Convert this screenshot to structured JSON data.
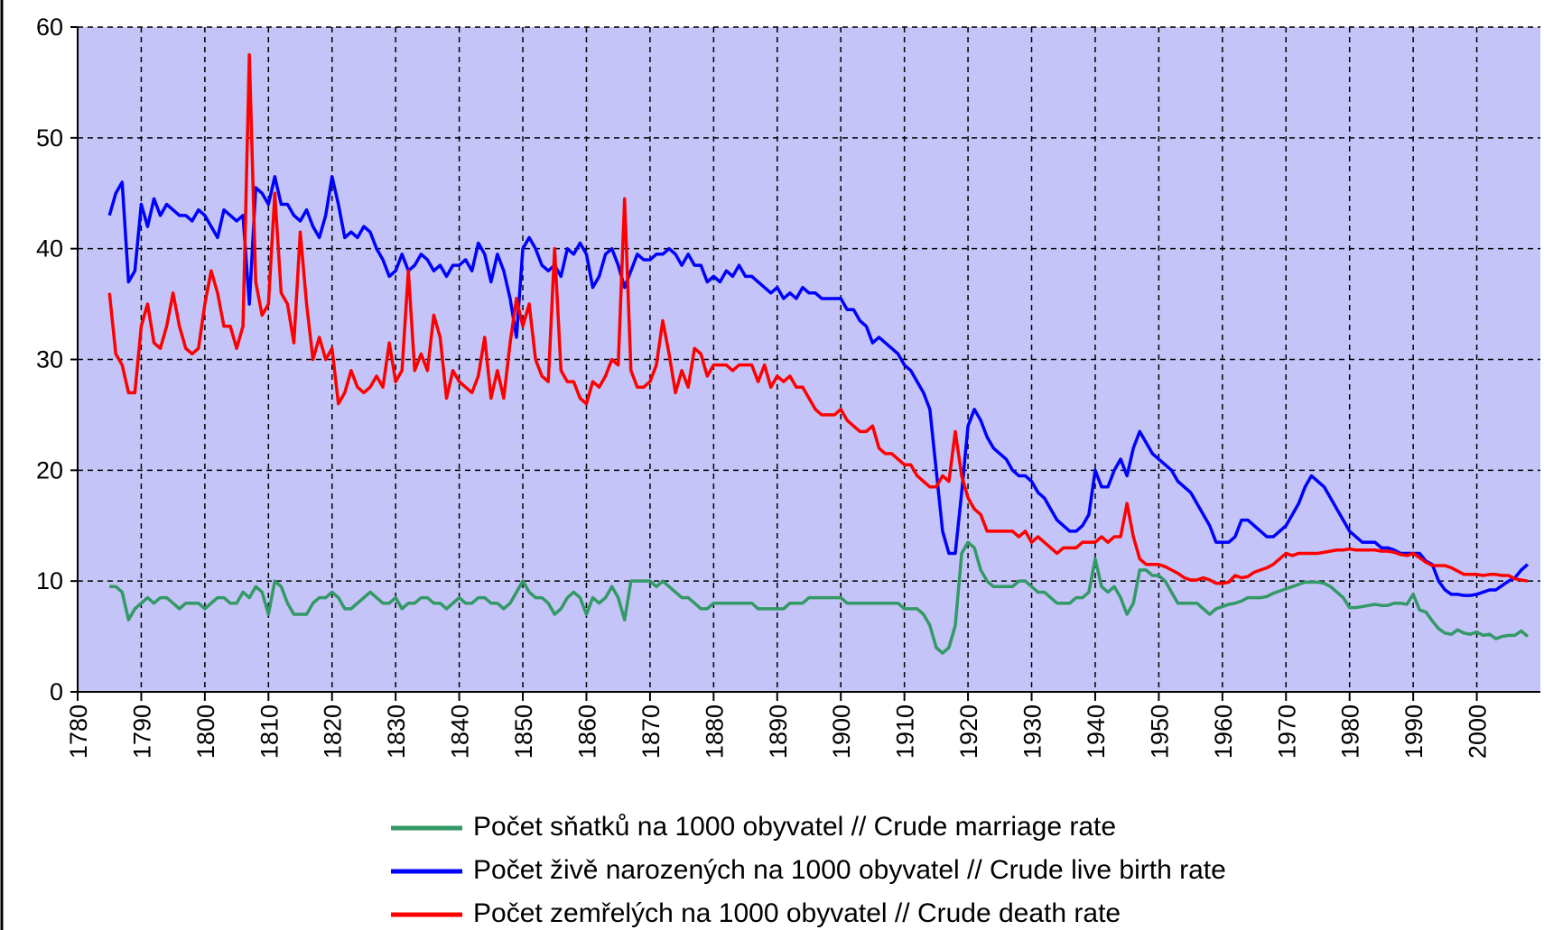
{
  "chart_data": {
    "type": "line",
    "x": [
      1785,
      1786,
      1787,
      1788,
      1789,
      1790,
      1791,
      1792,
      1793,
      1794,
      1795,
      1796,
      1797,
      1798,
      1799,
      1800,
      1801,
      1802,
      1803,
      1804,
      1805,
      1806,
      1807,
      1808,
      1809,
      1810,
      1811,
      1812,
      1813,
      1814,
      1815,
      1816,
      1817,
      1818,
      1819,
      1820,
      1821,
      1822,
      1823,
      1824,
      1825,
      1826,
      1827,
      1828,
      1829,
      1830,
      1831,
      1832,
      1833,
      1834,
      1835,
      1836,
      1837,
      1838,
      1839,
      1840,
      1841,
      1842,
      1843,
      1844,
      1845,
      1846,
      1847,
      1848,
      1849,
      1850,
      1851,
      1852,
      1853,
      1854,
      1855,
      1856,
      1857,
      1858,
      1859,
      1860,
      1861,
      1862,
      1863,
      1864,
      1865,
      1866,
      1867,
      1868,
      1869,
      1870,
      1871,
      1872,
      1873,
      1874,
      1875,
      1876,
      1877,
      1878,
      1879,
      1880,
      1881,
      1882,
      1883,
      1884,
      1885,
      1886,
      1887,
      1888,
      1889,
      1890,
      1891,
      1892,
      1893,
      1894,
      1895,
      1896,
      1897,
      1898,
      1899,
      1900,
      1901,
      1902,
      1903,
      1904,
      1905,
      1906,
      1907,
      1908,
      1909,
      1910,
      1911,
      1912,
      1913,
      1914,
      1915,
      1916,
      1917,
      1918,
      1919,
      1920,
      1921,
      1922,
      1923,
      1924,
      1925,
      1926,
      1927,
      1928,
      1929,
      1930,
      1931,
      1932,
      1933,
      1934,
      1935,
      1936,
      1937,
      1938,
      1939,
      1940,
      1941,
      1942,
      1943,
      1944,
      1945,
      1946,
      1947,
      1948,
      1949,
      1950,
      1951,
      1952,
      1953,
      1954,
      1955,
      1956,
      1957,
      1958,
      1959,
      1960,
      1961,
      1962,
      1963,
      1964,
      1965,
      1966,
      1967,
      1968,
      1969,
      1970,
      1971,
      1972,
      1973,
      1974,
      1975,
      1976,
      1977,
      1978,
      1979,
      1980,
      1981,
      1982,
      1983,
      1984,
      1985,
      1986,
      1987,
      1988,
      1989,
      1990,
      1991,
      1992,
      1993,
      1994,
      1995,
      1996,
      1997,
      1998,
      1999,
      2000,
      2001,
      2002,
      2003,
      2004,
      2005,
      2006,
      2007,
      2008
    ],
    "series": [
      {
        "name": "Počet sňatků na 1000 obyvatel // Crude marriage rate",
        "color": "#339966",
        "values": [
          9.5,
          9.5,
          9,
          6.5,
          7.5,
          8,
          8.5,
          8,
          8.5,
          8.5,
          8,
          7.5,
          8,
          8,
          8,
          7.5,
          8,
          8.5,
          8.5,
          8,
          8,
          9,
          8.5,
          9.5,
          9,
          7,
          10,
          9.5,
          8,
          7,
          7,
          7,
          8,
          8.5,
          8.5,
          9,
          8.5,
          7.5,
          7.5,
          8,
          8.5,
          9,
          8.5,
          8,
          8,
          8.5,
          7.5,
          8,
          8,
          8.5,
          8.5,
          8,
          8,
          7.5,
          8,
          8.5,
          8,
          8,
          8.5,
          8.5,
          8,
          8,
          7.5,
          8,
          9,
          10,
          9,
          8.5,
          8.5,
          8,
          7,
          7.5,
          8.5,
          9,
          8.5,
          7,
          8.5,
          8,
          8.5,
          9.5,
          8.5,
          6.5,
          10,
          10,
          10,
          10,
          9.5,
          10,
          9.5,
          9,
          8.5,
          8.5,
          8,
          7.5,
          7.5,
          8,
          8,
          8,
          8,
          8,
          8,
          8,
          7.5,
          7.5,
          7.5,
          7.5,
          7.5,
          8,
          8,
          8,
          8.5,
          8.5,
          8.5,
          8.5,
          8.5,
          8.5,
          8,
          8,
          8,
          8,
          8,
          8,
          8,
          8,
          8,
          7.5,
          7.5,
          7.5,
          7,
          6,
          4,
          3.5,
          4,
          6,
          12.5,
          13.5,
          13,
          11,
          10,
          9.5,
          9.5,
          9.5,
          9.5,
          10,
          10,
          9.5,
          9,
          9,
          8.5,
          8,
          8,
          8,
          8.5,
          8.5,
          9,
          12,
          9.5,
          9,
          9.5,
          8.5,
          7,
          8,
          11,
          11,
          10.5,
          10.5,
          10,
          9,
          8,
          8,
          8,
          8,
          7.5,
          7,
          7.5,
          7.7,
          7.9,
          8,
          8.2,
          8.5,
          8.5,
          8.5,
          8.6,
          8.9,
          9.1,
          9.3,
          9.5,
          9.7,
          9.9,
          9.9,
          9.9,
          9.8,
          9.5,
          9,
          8.5,
          7.6,
          7.6,
          7.7,
          7.8,
          7.9,
          7.8,
          7.8,
          8,
          8,
          7.9,
          8.8,
          7.4,
          7.2,
          6.4,
          5.7,
          5.3,
          5.2,
          5.6,
          5.3,
          5.2,
          5.4,
          5.1,
          5.2,
          4.8,
          5,
          5.1,
          5.1,
          5.5,
          5
        ]
      },
      {
        "name": "Počet živě narozených na 1000 obyvatel // Crude live birth rate",
        "color": "#0000ff",
        "values": [
          43,
          45,
          46,
          37,
          38,
          44,
          42,
          44.5,
          43,
          44,
          43.5,
          43,
          43,
          42.5,
          43.5,
          43,
          42,
          41,
          43.5,
          43,
          42.5,
          43,
          35,
          45.5,
          45,
          44,
          46.5,
          44,
          44,
          43,
          42.5,
          43.5,
          42,
          41,
          43,
          46.5,
          44,
          41,
          41.5,
          41,
          42,
          41.5,
          40,
          39,
          37.5,
          38,
          39.5,
          38,
          38.5,
          39.5,
          39,
          38,
          38.5,
          37.5,
          38.5,
          38.5,
          39,
          38,
          40.5,
          39.5,
          37,
          39.5,
          38,
          35.5,
          32,
          40,
          41,
          40,
          38.5,
          38,
          38.5,
          37.5,
          40,
          39.5,
          40.5,
          39.5,
          36.5,
          37.5,
          39.5,
          40,
          38.5,
          36.5,
          38,
          39.5,
          39,
          39,
          39.5,
          39.5,
          40,
          39.5,
          38.5,
          39.5,
          38.5,
          38.5,
          37,
          37.5,
          37,
          38,
          37.5,
          38.5,
          37.5,
          37.5,
          37,
          36.5,
          36,
          36.5,
          35.5,
          36,
          35.5,
          36.5,
          36,
          36,
          35.5,
          35.5,
          35.5,
          35.5,
          34.5,
          34.5,
          33.5,
          33,
          31.5,
          32,
          31.5,
          31,
          30.5,
          29.5,
          29,
          28,
          27,
          25.5,
          20,
          14.5,
          12.5,
          12.5,
          18,
          24,
          25.5,
          24.5,
          23,
          22,
          21.5,
          21,
          20,
          19.5,
          19.5,
          19,
          18,
          17.5,
          16.5,
          15.5,
          15,
          14.5,
          14.5,
          15,
          16,
          20,
          18.5,
          18.5,
          20,
          21,
          19.5,
          22,
          23.5,
          22.5,
          21.5,
          21,
          20.5,
          20,
          19,
          18.5,
          18,
          17,
          16,
          15,
          13.5,
          13.5,
          13.5,
          14,
          15.5,
          15.5,
          15,
          14.5,
          14,
          14,
          14.5,
          15,
          16,
          17,
          18.5,
          19.5,
          19,
          18.5,
          17.5,
          16.5,
          15.5,
          14.5,
          14,
          13.5,
          13.5,
          13.5,
          13,
          13,
          12.8,
          12.5,
          12.5,
          12.5,
          12.5,
          11.8,
          11.5,
          10,
          9.2,
          8.8,
          8.8,
          8.7,
          8.7,
          8.8,
          9,
          9.2,
          9.2,
          9.6,
          10,
          10.3,
          11,
          11.5
        ]
      },
      {
        "name": "Počet zemřelých na 1000 obyvatel // Crude death rate",
        "color": "#ff0000",
        "values": [
          36,
          30.5,
          29.5,
          27,
          27,
          33,
          35,
          31.5,
          31,
          33,
          36,
          33,
          31,
          30.5,
          31,
          35,
          38,
          36,
          33,
          33,
          31,
          33,
          57.5,
          37,
          34,
          35,
          45,
          36,
          35,
          31.5,
          41.5,
          35,
          30,
          32,
          30,
          31,
          26,
          27,
          29,
          27.5,
          27,
          27.5,
          28.5,
          27.5,
          31.5,
          28,
          29,
          38,
          29,
          30.5,
          29,
          34,
          32,
          26.5,
          29,
          28,
          27.5,
          27,
          28.5,
          32,
          26.5,
          29,
          26.5,
          31.5,
          35.5,
          33,
          35,
          30,
          28.5,
          28,
          40,
          29,
          28,
          28,
          26.5,
          26,
          28,
          27.5,
          28.5,
          30,
          29.5,
          44.5,
          29,
          27.5,
          27.5,
          28,
          29.5,
          33.5,
          30.5,
          27,
          29,
          27.5,
          31,
          30.5,
          28.5,
          29.5,
          29.5,
          29.5,
          29,
          29.5,
          29.5,
          29.5,
          28,
          29.5,
          27.5,
          28.5,
          28,
          28.5,
          27.5,
          27.5,
          26.5,
          25.5,
          25,
          25,
          25,
          25.5,
          24.5,
          24,
          23.5,
          23.5,
          24,
          22,
          21.5,
          21.5,
          21,
          20.5,
          20.5,
          19.5,
          19,
          18.5,
          18.5,
          19.5,
          19,
          23.5,
          19.5,
          17.5,
          16.5,
          16,
          14.5,
          14.5,
          14.5,
          14.5,
          14.5,
          14,
          14.5,
          13.5,
          14,
          13.5,
          13,
          12.5,
          13,
          13,
          13,
          13.5,
          13.5,
          13.5,
          14,
          13.5,
          14,
          14,
          17,
          14,
          12,
          11.5,
          11.5,
          11.5,
          11.3,
          11,
          10.7,
          10.3,
          10.1,
          10.1,
          10.3,
          10.1,
          9.8,
          9.8,
          9.9,
          10.5,
          10.3,
          10.4,
          10.8,
          11,
          11.2,
          11.5,
          12,
          12.5,
          12.3,
          12.5,
          12.5,
          12.5,
          12.5,
          12.6,
          12.7,
          12.8,
          12.8,
          12.9,
          12.8,
          12.8,
          12.8,
          12.8,
          12.7,
          12.7,
          12.6,
          12.4,
          12.3,
          12.5,
          12.1,
          11.7,
          11.4,
          11.4,
          11.4,
          11.2,
          10.9,
          10.6,
          10.6,
          10.6,
          10.5,
          10.6,
          10.6,
          10.5,
          10.5,
          10.2,
          10.1,
          10
        ]
      }
    ],
    "xlim": [
      1780,
      2010
    ],
    "xticks": [
      1780,
      1790,
      1800,
      1810,
      1820,
      1830,
      1840,
      1850,
      1860,
      1870,
      1880,
      1890,
      1900,
      1910,
      1920,
      1930,
      1940,
      1950,
      1960,
      1970,
      1980,
      1990,
      2000
    ],
    "ylim": [
      0,
      60
    ],
    "yticks": [
      0,
      10,
      20,
      30,
      40,
      50,
      60
    ],
    "grid": true,
    "legend": "bottom"
  }
}
